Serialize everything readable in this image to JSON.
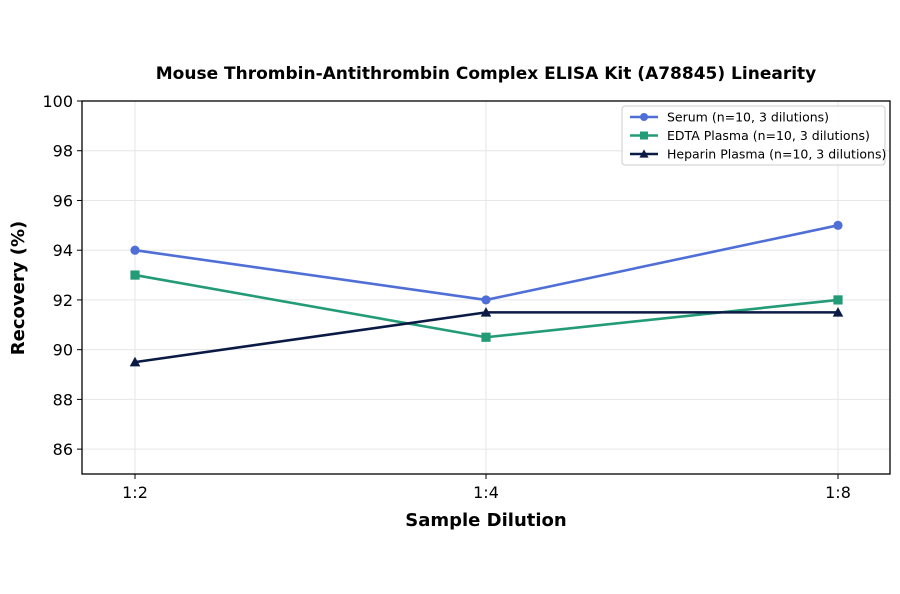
{
  "chart_data": {
    "type": "line",
    "title": "Mouse Thrombin-Antithrombin Complex ELISA Kit (A78845) Linearity",
    "xlabel": "Sample Dilution",
    "ylabel": "Recovery (%)",
    "categories": [
      "1:2",
      "1:4",
      "1:8"
    ],
    "ylim": [
      85,
      100
    ],
    "yticks": [
      86,
      88,
      90,
      92,
      94,
      96,
      98,
      100
    ],
    "grid": true,
    "legend_position": "top-right",
    "series": [
      {
        "name": "Serum (n=10, 3 dilutions)",
        "values": [
          94,
          92,
          95
        ],
        "color": "#4f6fd6",
        "marker": "circle"
      },
      {
        "name": "EDTA Plasma (n=10, 3 dilutions)",
        "values": [
          93,
          90.5,
          92
        ],
        "color": "#239b76",
        "marker": "square"
      },
      {
        "name": "Heparin Plasma (n=10, 3 dilutions)",
        "values": [
          89.5,
          91.5,
          91.5
        ],
        "color": "#0b1a45",
        "marker": "triangle"
      }
    ]
  }
}
